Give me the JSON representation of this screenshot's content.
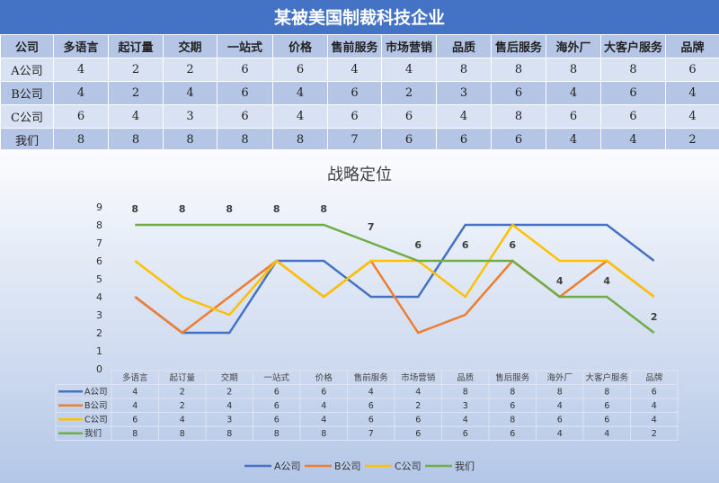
{
  "header": {
    "title": "某被美国制裁科技企业"
  },
  "table": {
    "corner": "公司",
    "columns": [
      "多语言",
      "起订量",
      "交期",
      "一站式",
      "价格",
      "售前服务",
      "市场营销",
      "品质",
      "售后服务",
      "海外厂",
      "大客户服务",
      "品牌"
    ],
    "rows": [
      {
        "name": "A公司",
        "values": [
          4,
          2,
          2,
          6,
          6,
          4,
          4,
          8,
          8,
          8,
          8,
          6
        ]
      },
      {
        "name": "B公司",
        "values": [
          4,
          2,
          4,
          6,
          4,
          6,
          2,
          3,
          6,
          4,
          6,
          4
        ]
      },
      {
        "name": "C公司",
        "values": [
          6,
          4,
          3,
          6,
          4,
          6,
          6,
          4,
          8,
          6,
          6,
          4
        ]
      },
      {
        "name": "我们",
        "values": [
          8,
          8,
          8,
          8,
          8,
          7,
          6,
          6,
          6,
          4,
          4,
          2
        ]
      }
    ]
  },
  "chart_data": {
    "type": "line",
    "title": "战略定位",
    "categories": [
      "多语言",
      "起订量",
      "交期",
      "一站式",
      "价格",
      "售前服务",
      "市场营销",
      "品质",
      "售后服务",
      "海外厂",
      "大客户服务",
      "品牌"
    ],
    "ylim": [
      0,
      9
    ],
    "yticks": [
      0,
      1,
      2,
      3,
      4,
      5,
      6,
      7,
      8,
      9
    ],
    "grid": false,
    "legend": "bottom",
    "data_table": true,
    "data_labels_series": "我们",
    "series": [
      {
        "name": "A公司",
        "color": "#4472c4",
        "values": [
          4,
          2,
          2,
          6,
          6,
          4,
          4,
          8,
          8,
          8,
          8,
          6
        ]
      },
      {
        "name": "B公司",
        "color": "#ed7d31",
        "values": [
          4,
          2,
          4,
          6,
          4,
          6,
          2,
          3,
          6,
          4,
          6,
          4
        ]
      },
      {
        "name": "C公司",
        "color": "#ffc000",
        "values": [
          6,
          4,
          3,
          6,
          4,
          6,
          6,
          4,
          8,
          6,
          6,
          4
        ]
      },
      {
        "name": "我们",
        "color": "#70ad47",
        "values": [
          8,
          8,
          8,
          8,
          8,
          7,
          6,
          6,
          6,
          4,
          4,
          2
        ]
      }
    ]
  }
}
